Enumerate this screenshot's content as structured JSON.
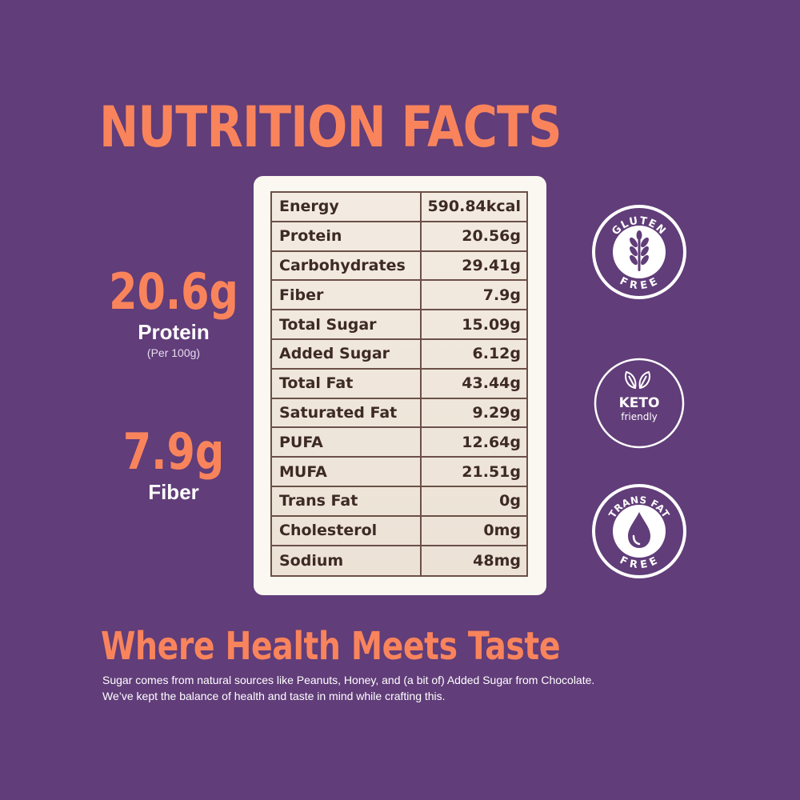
{
  "title": "NUTRITION FACTS",
  "highlights": [
    {
      "value": "20.6g",
      "label": "Protein",
      "sub": "(Per 100g)"
    },
    {
      "value": "7.9g",
      "label": "Fiber"
    }
  ],
  "nutrition_table": [
    {
      "name": "Energy",
      "value": "590.84kcal"
    },
    {
      "name": "Protein",
      "value": "20.56g"
    },
    {
      "name": "Carbohydrates",
      "value": "29.41g"
    },
    {
      "name": "Fiber",
      "value": "7.9g"
    },
    {
      "name": "Total Sugar",
      "value": "15.09g"
    },
    {
      "name": "Added Sugar",
      "value": "6.12g"
    },
    {
      "name": "Total Fat",
      "value": "43.44g"
    },
    {
      "name": "Saturated Fat",
      "value": "9.29g"
    },
    {
      "name": "PUFA",
      "value": "12.64g"
    },
    {
      "name": "MUFA",
      "value": "21.51g"
    },
    {
      "name": "Trans Fat",
      "value": "0g"
    },
    {
      "name": "Cholesterol",
      "value": "0mg"
    },
    {
      "name": "Sodium",
      "value": "48mg"
    }
  ],
  "badges": {
    "gluten": {
      "top": "GLUTEN",
      "bottom": "FREE",
      "icon": "wheat-icon"
    },
    "keto": {
      "main": "KETO",
      "sub": "friendly",
      "icon": "leaf-icon"
    },
    "transfat": {
      "top": "TRANS FAT",
      "bottom": "FREE",
      "icon": "drop-icon"
    }
  },
  "tagline": "Where Health Meets Taste",
  "description": [
    "Sugar comes from natural sources like Peanuts, Honey, and (a bit of) Added Sugar from Chocolate.",
    "We’ve kept the balance of health and taste in mind while crafting this."
  ],
  "colors": {
    "background": "#613d79",
    "accent": "#f9845c",
    "card": "#fbf7f1",
    "table_border": "#6b5047",
    "table_text": "#3d2a25"
  }
}
